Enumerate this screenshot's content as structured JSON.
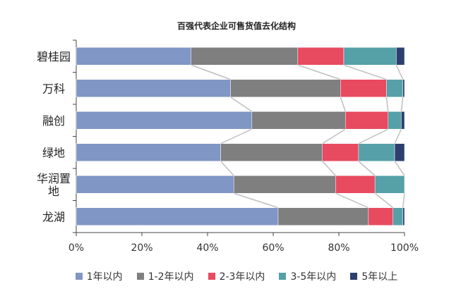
{
  "chart_data": {
    "type": "bar",
    "orientation": "horizontal",
    "stacked": true,
    "title": "百强代表企业可售货值去化结构",
    "categories": [
      "碧桂园",
      "万科",
      "融创",
      "绿地",
      "华润置地",
      "龙湖"
    ],
    "category_display": [
      [
        "碧桂园"
      ],
      [
        "万科"
      ],
      [
        "融创"
      ],
      [
        "绿地"
      ],
      [
        "华润置",
        "地"
      ],
      [
        "龙湖"
      ]
    ],
    "series": [
      {
        "name": "1年以内",
        "color": "#8096c4",
        "values": [
          35,
          47,
          53.5,
          44,
          48,
          61.5
        ]
      },
      {
        "name": "1-2年以内",
        "color": "#7f7f7f",
        "values": [
          32.5,
          33.5,
          28.5,
          31,
          31,
          27.5
        ]
      },
      {
        "name": "2-3年以内",
        "color": "#e84a60",
        "values": [
          14,
          14,
          13,
          11,
          12,
          7.5
        ]
      },
      {
        "name": "3-5年以内",
        "color": "#56a0a8",
        "values": [
          16,
          5,
          4,
          11,
          9,
          3
        ]
      },
      {
        "name": "5年以上",
        "color": "#2e3f6e",
        "values": [
          2.5,
          0.5,
          1,
          3,
          0,
          0.5
        ]
      }
    ],
    "xlim": [
      0,
      100
    ],
    "x_ticks": [
      "0%",
      "20%",
      "40%",
      "60%",
      "80%",
      "100%"
    ],
    "legend_position": "bottom",
    "connector_lines": true
  }
}
